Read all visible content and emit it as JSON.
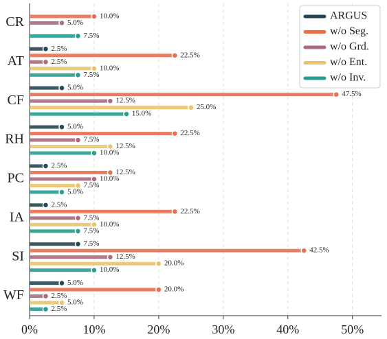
{
  "chart_data": {
    "type": "bar",
    "orientation": "horizontal",
    "categories": [
      "CR",
      "AT",
      "CF",
      "RH",
      "PC",
      "IA",
      "SI",
      "WF"
    ],
    "series": [
      {
        "name": "ARGUS",
        "color": "#264653",
        "values": [
          null,
          2.5,
          5.0,
          5.0,
          2.5,
          2.5,
          7.5,
          5.0
        ],
        "value_labels": [
          null,
          "2.5%",
          "5.0%",
          "5.0%",
          "2.5%",
          "2.5%",
          "7.5%",
          "5.0%"
        ]
      },
      {
        "name": "w/o Seg.",
        "color": "#e76f51",
        "values": [
          10.0,
          22.5,
          47.5,
          22.5,
          12.5,
          22.5,
          42.5,
          20.0
        ],
        "value_labels": [
          "10.0%",
          "22.5%",
          "47.5%",
          "22.5%",
          "12.5%",
          "22.5%",
          "42.5%",
          "20.0%"
        ]
      },
      {
        "name": "w/o Grd.",
        "color": "#a86b80",
        "values": [
          5.0,
          2.5,
          12.5,
          7.5,
          10.0,
          7.5,
          12.5,
          2.5
        ],
        "value_labels": [
          "5.0%",
          "2.5%",
          "12.5%",
          "7.5%",
          "10.0%",
          "7.5%",
          "12.5%",
          "2.5%"
        ]
      },
      {
        "name": "w/o Ent.",
        "color": "#e9c46a",
        "values": [
          null,
          10.0,
          25.0,
          12.5,
          7.5,
          10.0,
          20.0,
          5.0
        ],
        "value_labels": [
          null,
          "10.0%",
          "25.0%",
          "12.5%",
          "7.5%",
          "10.0%",
          "20.0%",
          "5.0%"
        ]
      },
      {
        "name": "w/o Inv.",
        "color": "#2a9d8f",
        "values": [
          7.5,
          7.5,
          15.0,
          10.0,
          5.0,
          7.5,
          10.0,
          2.5
        ],
        "value_labels": [
          "7.5%",
          "7.5%",
          "15.0%",
          "10.0%",
          "5.0%",
          "7.5%",
          "10.0%",
          "2.5%"
        ]
      }
    ],
    "xlim": [
      0,
      54.5
    ],
    "xticks": [
      {
        "value": 0,
        "label": "0%"
      },
      {
        "value": 10,
        "label": "10%"
      },
      {
        "value": 20,
        "label": "20%"
      },
      {
        "value": 30,
        "label": "30%"
      },
      {
        "value": 40,
        "label": "40%"
      },
      {
        "value": 50,
        "label": "50%"
      }
    ],
    "grid": true,
    "legend": "upper right"
  }
}
